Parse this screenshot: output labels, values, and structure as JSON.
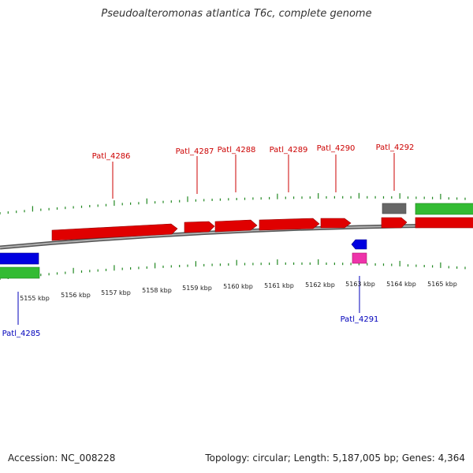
{
  "title": "Pseudoalteromonas atlantica T6c, complete genome",
  "footer": {
    "accession": "Accession: NC_008228",
    "summary": "Topology: circular; Length: 5,187,005 bp; Genes: 4,364"
  },
  "colors": {
    "forward_cds": "#e00000",
    "reverse_cds": "#0000e0",
    "rrna": "#33bb33",
    "misc_feature": "#666666",
    "trna": "#ee33aa",
    "backbone": "#808080",
    "ticks": "#228822",
    "forward_label": "#cc0000",
    "reverse_label": "#0000bb"
  },
  "ruler_labels": [
    {
      "kbp": 5155,
      "label": "5155 kbp"
    },
    {
      "kbp": 5156,
      "label": "5156 kbp"
    },
    {
      "kbp": 5157,
      "label": "5157 kbp"
    },
    {
      "kbp": 5158,
      "label": "5158 kbp"
    },
    {
      "kbp": 5159,
      "label": "5159 kbp"
    },
    {
      "kbp": 5160,
      "label": "5160 kbp"
    },
    {
      "kbp": 5161,
      "label": "5161 kbp"
    },
    {
      "kbp": 5162,
      "label": "5162 kbp"
    },
    {
      "kbp": 5163,
      "label": "5163 kbp"
    },
    {
      "kbp": 5164,
      "label": "5164 kbp"
    },
    {
      "kbp": 5165,
      "label": "5165 kbp"
    }
  ],
  "genes": [
    {
      "name": "Patl_4285",
      "strand": "reverse"
    },
    {
      "name": "Patl_4286",
      "strand": "forward"
    },
    {
      "name": "Patl_4287",
      "strand": "forward"
    },
    {
      "name": "Patl_4288",
      "strand": "forward"
    },
    {
      "name": "Patl_4289",
      "strand": "forward"
    },
    {
      "name": "Patl_4290",
      "strand": "forward"
    },
    {
      "name": "Patl_4291",
      "strand": "reverse"
    },
    {
      "name": "Patl_4292",
      "strand": "forward"
    }
  ]
}
